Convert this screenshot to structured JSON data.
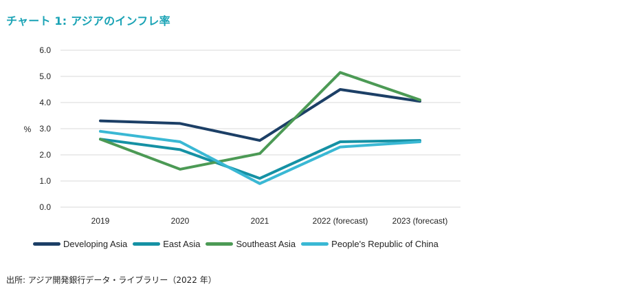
{
  "title": "チャート 1: アジアのインフレ率",
  "source": "出所: アジア開発銀行データ・ライブラリー（2022 年）",
  "chart_data": {
    "type": "line",
    "title": "チャート 1: アジアのインフレ率",
    "ylabel": "%",
    "xlabel": "",
    "ylim": [
      0,
      6
    ],
    "yticks": [
      "0.0",
      "1.0",
      "2.0",
      "3.0",
      "4.0",
      "5.0",
      "6.0"
    ],
    "categories": [
      "2019",
      "2020",
      "2021",
      "2022 (forecast)",
      "2023 (forecast)"
    ],
    "grid": true,
    "legend": "bottom",
    "series": [
      {
        "name": "Developing Asia",
        "color": "#1c3f66",
        "values": [
          3.3,
          3.2,
          2.55,
          4.5,
          4.05
        ]
      },
      {
        "name": "East Asia",
        "color": "#1591a4",
        "values": [
          2.6,
          2.2,
          1.1,
          2.5,
          2.55
        ]
      },
      {
        "name": "Southeast Asia",
        "color": "#4c9a55",
        "values": [
          2.6,
          1.45,
          2.05,
          5.15,
          4.1
        ]
      },
      {
        "name": "People's Republic of China",
        "color": "#3ab8d4",
        "values": [
          2.9,
          2.5,
          0.9,
          2.3,
          2.5
        ]
      }
    ]
  }
}
